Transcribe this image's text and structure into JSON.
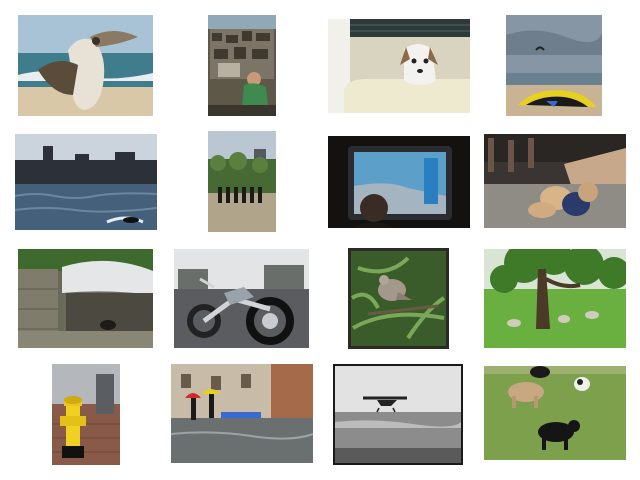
{
  "grid": {
    "background": "#ffffff",
    "thumbnails": [
      {
        "subject": "pelican-on-beach"
      },
      {
        "subject": "market-stall-vendor"
      },
      {
        "subject": "dog-in-bathtub"
      },
      {
        "subject": "kite-surfer-beach"
      },
      {
        "subject": "city-waterfront-jetski"
      },
      {
        "subject": "horse-guards-parade"
      },
      {
        "subject": "person-watching-tablet"
      },
      {
        "subject": "teddy-bear-on-sidewalk"
      },
      {
        "subject": "animal-shelter-hut"
      },
      {
        "subject": "custom-chopper-motorcycle"
      },
      {
        "subject": "dove-on-branch"
      },
      {
        "subject": "tree-in-green-meadow"
      },
      {
        "subject": "yellow-fire-hydrant"
      },
      {
        "subject": "flooded-street-umbrellas"
      },
      {
        "subject": "seaplane-over-water"
      },
      {
        "subject": "cows-in-pasture"
      }
    ]
  }
}
